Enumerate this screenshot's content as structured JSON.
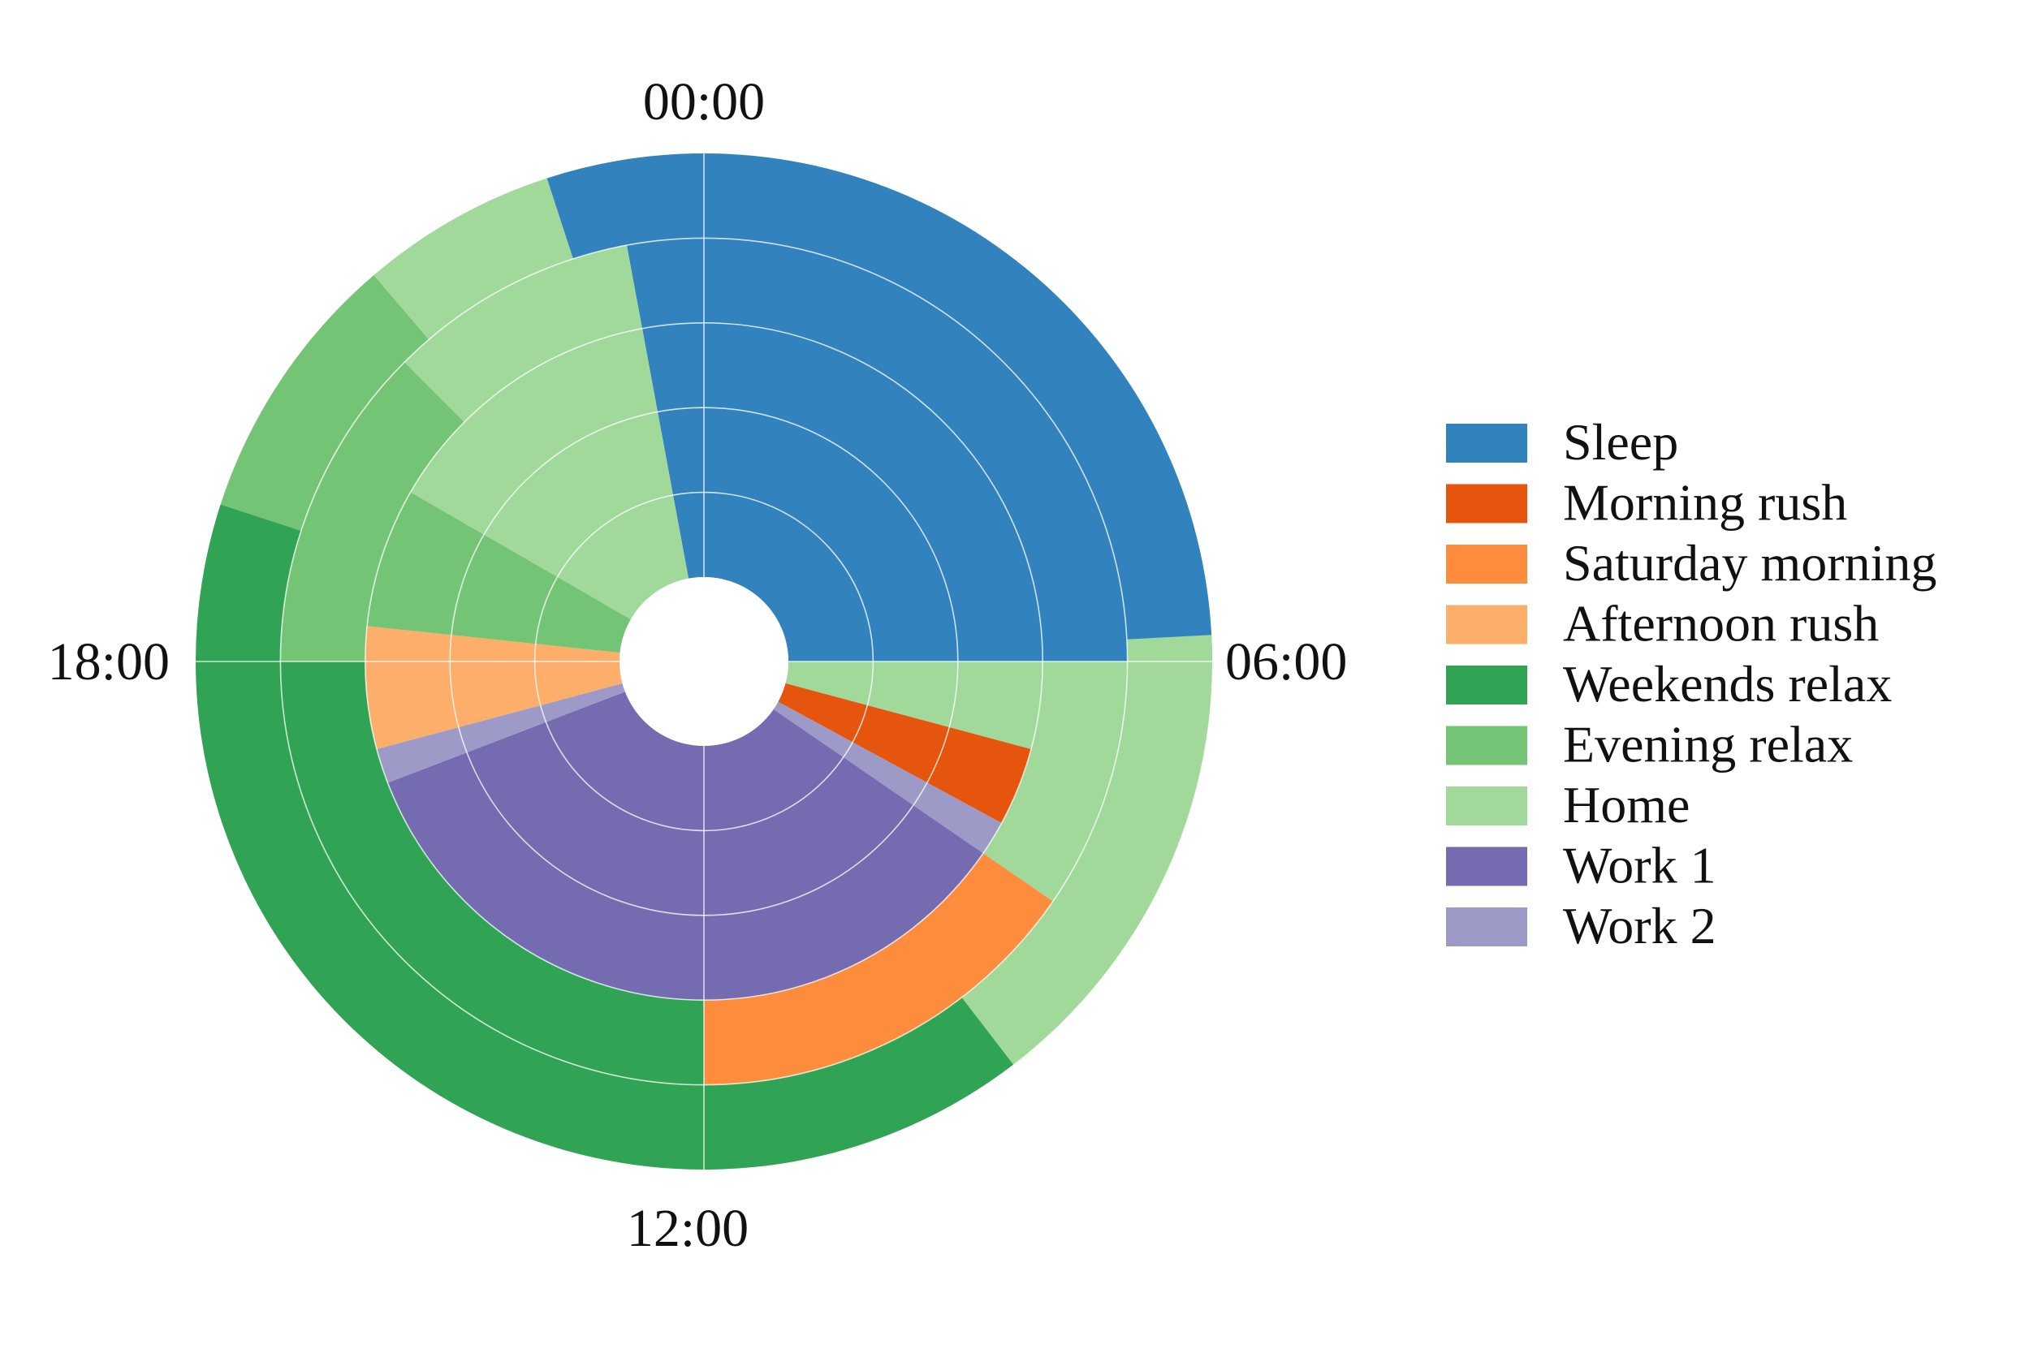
{
  "chart_data": {
    "type": "polar-bar",
    "description_units": "angle in hours of day (0-24, clockwise from top), ring index from inner (1) to outer (5)",
    "rings": 5,
    "theta_ticks": [
      "00:00",
      "06:00",
      "12:00",
      "18:00"
    ],
    "categories": [
      {
        "name": "Sleep",
        "color": "#3182bd"
      },
      {
        "name": "Morning rush",
        "color": "#e6550d"
      },
      {
        "name": "Saturday morning",
        "color": "#fd8d3c"
      },
      {
        "name": "Afternoon rush",
        "color": "#fdae6b"
      },
      {
        "name": "Weekends relax",
        "color": "#31a354"
      },
      {
        "name": "Evening relax",
        "color": "#74c476"
      },
      {
        "name": "Home",
        "color": "#a1d99b"
      },
      {
        "name": "Work 1",
        "color": "#756bb1"
      },
      {
        "name": "Work 2",
        "color": "#9e9ac8"
      }
    ],
    "segments": [
      {
        "ring": 1,
        "start": 0.0,
        "end": 6.0,
        "category": "Sleep"
      },
      {
        "ring": 2,
        "start": 0.0,
        "end": 6.0,
        "category": "Sleep"
      },
      {
        "ring": 3,
        "start": 0.0,
        "end": 6.0,
        "category": "Sleep"
      },
      {
        "ring": 4,
        "start": 0.0,
        "end": 6.0,
        "category": "Sleep"
      },
      {
        "ring": 5,
        "start": 0.0,
        "end": 6.0,
        "category": "Sleep"
      },
      {
        "ring": 1,
        "start": 23.3,
        "end": 24.0,
        "category": "Sleep"
      },
      {
        "ring": 2,
        "start": 23.3,
        "end": 24.0,
        "category": "Sleep"
      },
      {
        "ring": 3,
        "start": 23.3,
        "end": 24.0,
        "category": "Sleep"
      },
      {
        "ring": 4,
        "start": 23.3,
        "end": 24.0,
        "category": "Sleep"
      },
      {
        "ring": 5,
        "start": 22.8,
        "end": 24.0,
        "category": "Sleep"
      },
      {
        "ring": 1,
        "start": 6.0,
        "end": 7.0,
        "category": "Home"
      },
      {
        "ring": 2,
        "start": 6.0,
        "end": 7.0,
        "category": "Home"
      },
      {
        "ring": 3,
        "start": 6.0,
        "end": 7.0,
        "category": "Home"
      },
      {
        "ring": 4,
        "start": 6.0,
        "end": 8.3,
        "category": "Home"
      },
      {
        "ring": 5,
        "start": 5.8,
        "end": 9.5,
        "category": "Home"
      },
      {
        "ring": 1,
        "start": 7.0,
        "end": 7.9,
        "category": "Morning rush"
      },
      {
        "ring": 2,
        "start": 7.0,
        "end": 7.9,
        "category": "Morning rush"
      },
      {
        "ring": 3,
        "start": 7.0,
        "end": 7.9,
        "category": "Morning rush"
      },
      {
        "ring": 1,
        "start": 7.9,
        "end": 8.3,
        "category": "Work 2"
      },
      {
        "ring": 2,
        "start": 7.9,
        "end": 8.3,
        "category": "Work 2"
      },
      {
        "ring": 3,
        "start": 7.9,
        "end": 8.3,
        "category": "Work 2"
      },
      {
        "ring": 4,
        "start": 8.3,
        "end": 12.0,
        "category": "Saturday morning"
      },
      {
        "ring": 1,
        "start": 8.3,
        "end": 16.6,
        "category": "Work 1"
      },
      {
        "ring": 2,
        "start": 8.3,
        "end": 16.6,
        "category": "Work 1"
      },
      {
        "ring": 3,
        "start": 8.3,
        "end": 16.6,
        "category": "Work 1"
      },
      {
        "ring": 5,
        "start": 9.5,
        "end": 19.2,
        "category": "Weekends relax"
      },
      {
        "ring": 4,
        "start": 12.0,
        "end": 18.0,
        "category": "Weekends relax"
      },
      {
        "ring": 1,
        "start": 16.6,
        "end": 17.0,
        "category": "Work 2"
      },
      {
        "ring": 2,
        "start": 16.6,
        "end": 17.0,
        "category": "Work 2"
      },
      {
        "ring": 3,
        "start": 16.6,
        "end": 17.0,
        "category": "Work 2"
      },
      {
        "ring": 1,
        "start": 17.0,
        "end": 18.4,
        "category": "Afternoon rush"
      },
      {
        "ring": 2,
        "start": 17.0,
        "end": 18.4,
        "category": "Afternoon rush"
      },
      {
        "ring": 3,
        "start": 17.0,
        "end": 18.4,
        "category": "Afternoon rush"
      },
      {
        "ring": 1,
        "start": 18.4,
        "end": 20.0,
        "category": "Evening relax"
      },
      {
        "ring": 2,
        "start": 18.4,
        "end": 20.0,
        "category": "Evening relax"
      },
      {
        "ring": 3,
        "start": 18.4,
        "end": 20.0,
        "category": "Evening relax"
      },
      {
        "ring": 4,
        "start": 18.0,
        "end": 21.0,
        "category": "Evening relax"
      },
      {
        "ring": 5,
        "start": 19.2,
        "end": 21.3,
        "category": "Evening relax"
      },
      {
        "ring": 1,
        "start": 20.0,
        "end": 23.3,
        "category": "Home"
      },
      {
        "ring": 2,
        "start": 20.0,
        "end": 23.3,
        "category": "Home"
      },
      {
        "ring": 3,
        "start": 20.0,
        "end": 23.3,
        "category": "Home"
      },
      {
        "ring": 4,
        "start": 21.0,
        "end": 23.3,
        "category": "Home"
      },
      {
        "ring": 5,
        "start": 21.3,
        "end": 22.8,
        "category": "Home"
      }
    ],
    "grid": true,
    "legend_position": "right"
  }
}
